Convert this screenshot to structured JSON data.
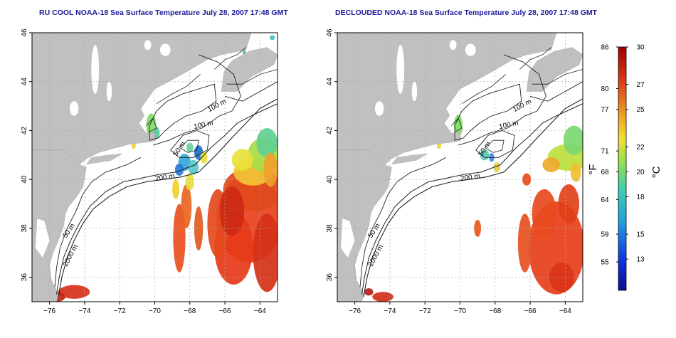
{
  "titles": {
    "left": "RU COOL NOAA-18 Sea Surface Temperature July 28, 2007 17:48 GMT",
    "right": "DECLOUDED NOAA-18 Sea Surface Temperature July 28, 2007 17:48 GMT"
  },
  "map": {
    "lon_range": [
      -77,
      -63
    ],
    "lat_range": [
      35,
      46
    ],
    "x_ticks": [
      -76,
      -74,
      -72,
      -70,
      -68,
      -66,
      -64
    ],
    "y_ticks": [
      36,
      38,
      40,
      42,
      44,
      46
    ],
    "grid": "dotted",
    "land_color": "#c0c0c0",
    "ocean_color": "#ffffff",
    "contours": [
      "50 m",
      "100 m",
      "200 m",
      "2000 m"
    ]
  },
  "colorbar": {
    "celsius_labels": [
      "30",
      "27",
      "25",
      "22",
      "20",
      "18",
      "15",
      "13"
    ],
    "celsius_values": [
      30,
      27,
      25,
      22,
      20,
      18,
      15,
      13
    ],
    "fahrenheit_labels": [
      "86",
      "80",
      "77",
      "71",
      "68",
      "64",
      "59",
      "55"
    ],
    "fahrenheit_values": [
      86,
      80,
      77,
      71,
      68,
      64,
      59,
      55
    ],
    "range_c": [
      10.5,
      30
    ],
    "unit_f": "°F",
    "unit_c": "°C"
  }
}
